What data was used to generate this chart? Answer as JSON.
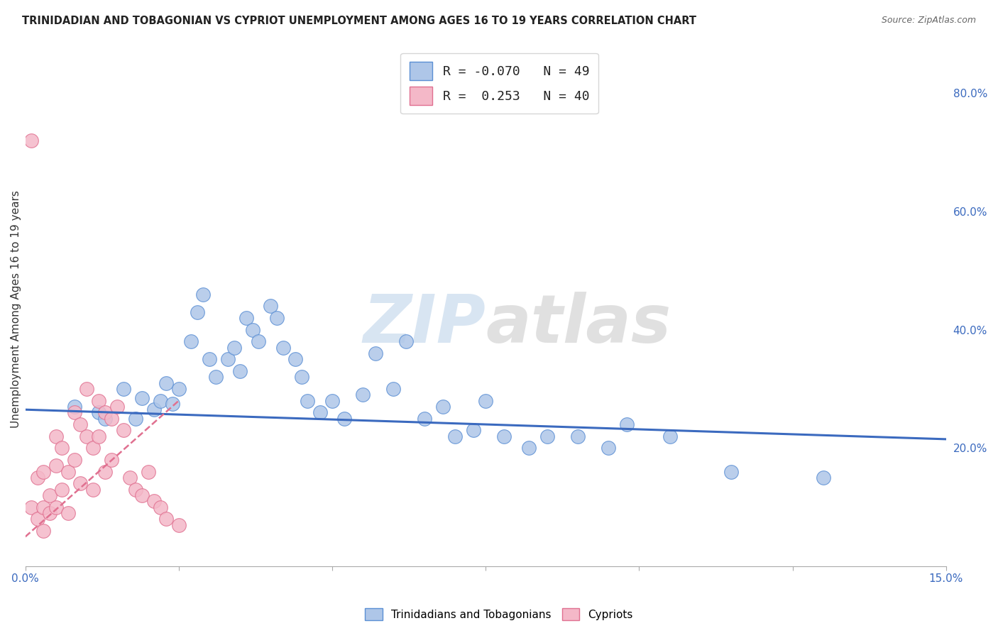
{
  "title": "TRINIDADIAN AND TOBAGONIAN VS CYPRIOT UNEMPLOYMENT AMONG AGES 16 TO 19 YEARS CORRELATION CHART",
  "source": "Source: ZipAtlas.com",
  "ylabel": "Unemployment Among Ages 16 to 19 years",
  "xlim": [
    0.0,
    0.15
  ],
  "ylim": [
    0.0,
    0.87
  ],
  "xticks": [
    0.0,
    0.025,
    0.05,
    0.075,
    0.1,
    0.125,
    0.15
  ],
  "xticklabels": [
    "0.0%",
    "",
    "",
    "",
    "",
    "",
    "15.0%"
  ],
  "yticks_right": [
    0.2,
    0.4,
    0.6,
    0.8
  ],
  "ytick_right_labels": [
    "20.0%",
    "40.0%",
    "60.0%",
    "80.0%"
  ],
  "R_blue": -0.07,
  "N_blue": 49,
  "R_pink": 0.253,
  "N_pink": 40,
  "blue_color": "#aec6e8",
  "pink_color": "#f4b8c8",
  "blue_edge_color": "#5b8fd4",
  "pink_edge_color": "#e07090",
  "blue_line_color": "#3b6abf",
  "pink_line_color": "#e07090",
  "legend_label_blue": "Trinidadians and Tobagonians",
  "legend_label_pink": "Cypriots",
  "watermark_zip": "ZIP",
  "watermark_atlas": "atlas",
  "background_color": "#ffffff",
  "grid_color": "#c8c8c8",
  "blue_scatter_x": [
    0.008,
    0.012,
    0.013,
    0.016,
    0.018,
    0.019,
    0.021,
    0.022,
    0.023,
    0.024,
    0.025,
    0.027,
    0.028,
    0.029,
    0.03,
    0.031,
    0.033,
    0.034,
    0.035,
    0.036,
    0.037,
    0.038,
    0.04,
    0.041,
    0.042,
    0.044,
    0.045,
    0.046,
    0.048,
    0.05,
    0.052,
    0.055,
    0.057,
    0.06,
    0.062,
    0.065,
    0.068,
    0.07,
    0.073,
    0.075,
    0.078,
    0.082,
    0.085,
    0.09,
    0.095,
    0.098,
    0.105,
    0.115,
    0.13
  ],
  "blue_scatter_y": [
    0.27,
    0.26,
    0.25,
    0.3,
    0.25,
    0.285,
    0.265,
    0.28,
    0.31,
    0.275,
    0.3,
    0.38,
    0.43,
    0.46,
    0.35,
    0.32,
    0.35,
    0.37,
    0.33,
    0.42,
    0.4,
    0.38,
    0.44,
    0.42,
    0.37,
    0.35,
    0.32,
    0.28,
    0.26,
    0.28,
    0.25,
    0.29,
    0.36,
    0.3,
    0.38,
    0.25,
    0.27,
    0.22,
    0.23,
    0.28,
    0.22,
    0.2,
    0.22,
    0.22,
    0.2,
    0.24,
    0.22,
    0.16,
    0.15
  ],
  "pink_scatter_x": [
    0.001,
    0.001,
    0.002,
    0.002,
    0.003,
    0.003,
    0.003,
    0.004,
    0.004,
    0.005,
    0.005,
    0.005,
    0.006,
    0.006,
    0.007,
    0.007,
    0.008,
    0.008,
    0.009,
    0.009,
    0.01,
    0.01,
    0.011,
    0.011,
    0.012,
    0.012,
    0.013,
    0.013,
    0.014,
    0.014,
    0.015,
    0.016,
    0.017,
    0.018,
    0.019,
    0.02,
    0.021,
    0.022,
    0.023,
    0.025
  ],
  "pink_scatter_y": [
    0.72,
    0.1,
    0.15,
    0.08,
    0.16,
    0.1,
    0.06,
    0.12,
    0.09,
    0.22,
    0.17,
    0.1,
    0.2,
    0.13,
    0.16,
    0.09,
    0.26,
    0.18,
    0.24,
    0.14,
    0.3,
    0.22,
    0.2,
    0.13,
    0.28,
    0.22,
    0.26,
    0.16,
    0.25,
    0.18,
    0.27,
    0.23,
    0.15,
    0.13,
    0.12,
    0.16,
    0.11,
    0.1,
    0.08,
    0.07
  ],
  "blue_trend_x": [
    0.0,
    0.15
  ],
  "blue_trend_y": [
    0.265,
    0.215
  ],
  "pink_trend_x": [
    0.0,
    0.025
  ],
  "pink_trend_y": [
    0.05,
    0.28
  ]
}
